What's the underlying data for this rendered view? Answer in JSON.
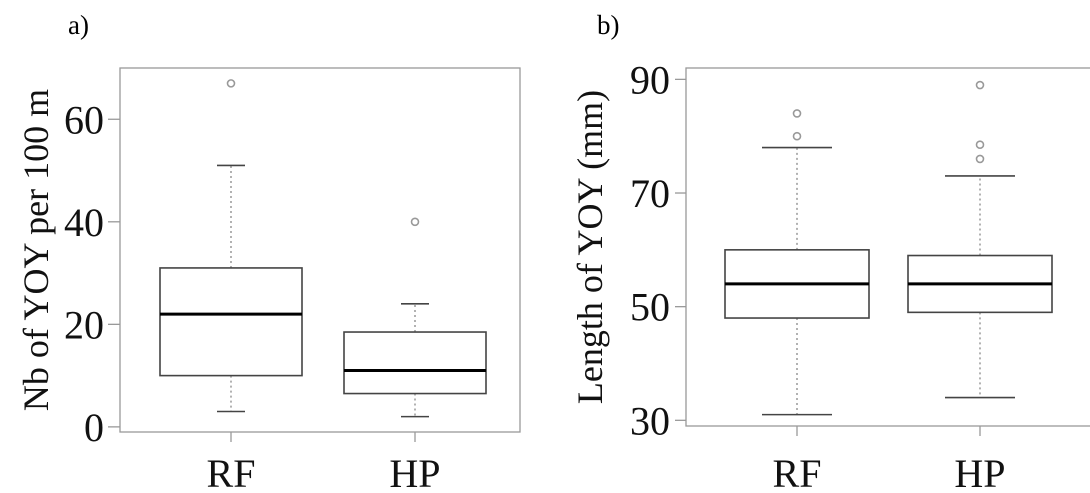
{
  "chart_data": [
    {
      "type": "box",
      "panel_label": "a)",
      "ylabel": "Nb of YOY per 100 m",
      "categories": [
        "RF",
        "HP"
      ],
      "ylim": [
        -1,
        70
      ],
      "yticks": [
        0,
        20,
        40,
        60
      ],
      "series": [
        {
          "whisker_low": 3,
          "q1": 10,
          "median": 22,
          "q3": 31,
          "whisker_high": 51,
          "outliers": [
            67
          ]
        },
        {
          "whisker_low": 2,
          "q1": 6.5,
          "median": 11,
          "q3": 18.5,
          "whisker_high": 24,
          "outliers": [
            40
          ]
        }
      ]
    },
    {
      "type": "box",
      "panel_label": "b)",
      "ylabel": "Length of YOY (mm)",
      "categories": [
        "RF",
        "HP"
      ],
      "ylim": [
        29,
        92
      ],
      "yticks": [
        30,
        50,
        70,
        90
      ],
      "series": [
        {
          "whisker_low": 31,
          "q1": 48,
          "median": 54,
          "q3": 60,
          "whisker_high": 78,
          "outliers": [
            80,
            84
          ]
        },
        {
          "whisker_low": 34,
          "q1": 49,
          "median": 54,
          "q3": 59,
          "whisker_high": 73,
          "outliers": [
            76,
            78.5,
            89
          ]
        }
      ]
    }
  ]
}
